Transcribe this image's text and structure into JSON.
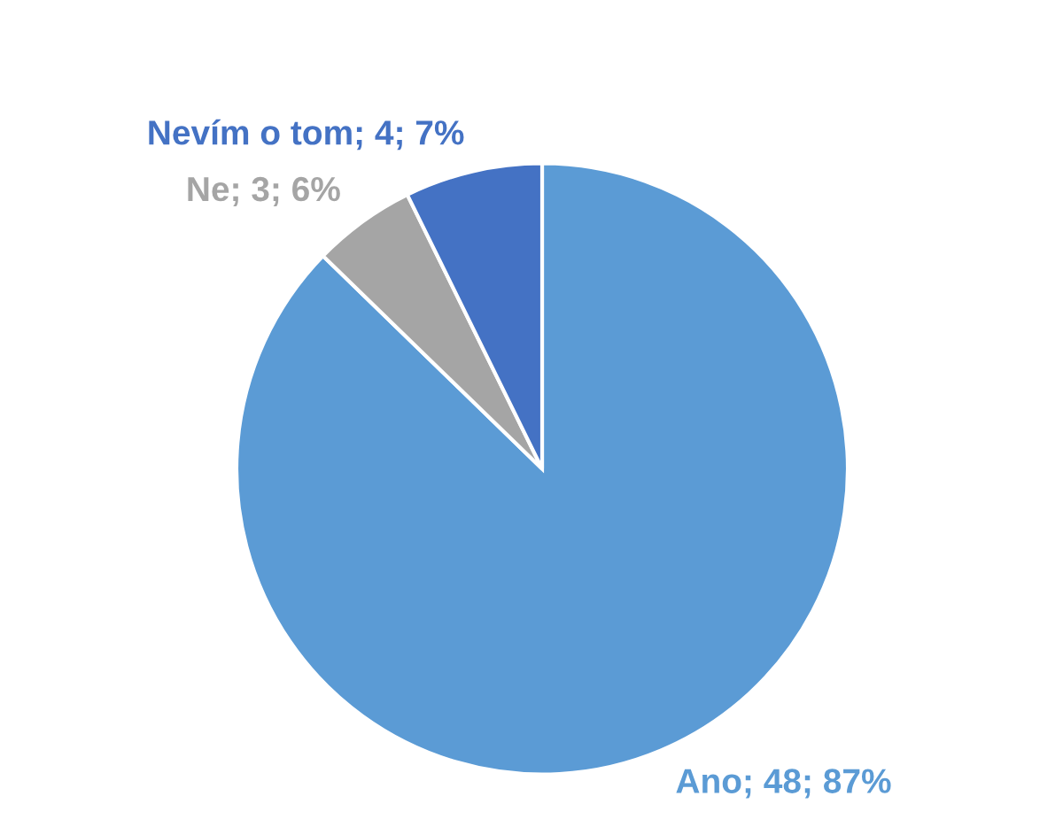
{
  "chart_data": {
    "type": "pie",
    "categories": [
      "Ano",
      "Ne",
      "Nevím o tom"
    ],
    "values": [
      48,
      3,
      4
    ],
    "colors": [
      "#5b9bd5",
      "#a5a5a5",
      "#4472c4"
    ],
    "value_labels": [
      "48; 87%",
      "3; 6%",
      "4; 7%"
    ],
    "legend": false
  }
}
